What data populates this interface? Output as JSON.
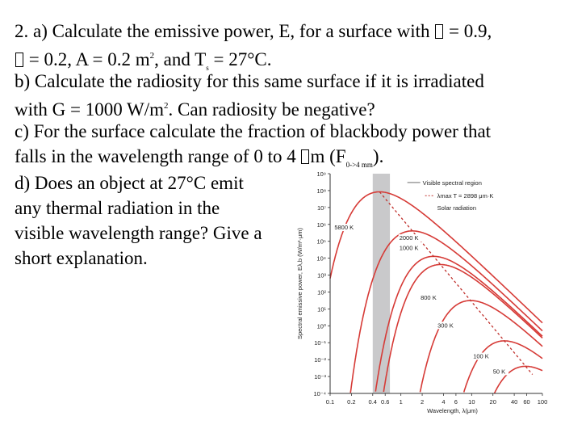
{
  "question": {
    "a": {
      "line1_pre": "2. a) Calculate the emissive power, E, for a surface with ",
      "line1_post": " = 0.9,",
      "line2_post": " = 0.2, A = 0.2 m",
      "area_exp": "2",
      "line2_mid": ", and T",
      "ts_sub": "s",
      "line2_end": " = 27°C."
    },
    "b": {
      "line1": "b) Calculate the radiosity for this same surface if it is irradiated",
      "line2_pre": "with G = 1000 W/m",
      "g_exp": "2",
      "line2_post": ".  Can radiosity be negative?"
    },
    "c": {
      "line1": "c) For the surface calculate the fraction of blackbody power that",
      "line2_pre": "falls in the wavelength range of 0 to 4 ",
      "line2_mid": "m (F",
      "f_sub": "0->4 mm",
      "line2_end": ")."
    },
    "d": {
      "line1": "d) Does an object at 27°C emit",
      "line2": "any thermal radiation in the",
      "line3": "visible wavelength range? Give a",
      "line4": "short explanation."
    }
  },
  "chart_data": {
    "type": "line",
    "xlabel": "Wavelength, λ(μm)",
    "ylabel": "Spectral emissive power, Eλ,b (W/m²·μm)",
    "x_scale": "log",
    "y_scale": "log",
    "xlim": [
      0.1,
      100
    ],
    "ylim": [
      0.0001,
      1000000000
    ],
    "x_ticks": [
      "0.1",
      "0.2",
      "0.4",
      "0.6",
      "1",
      "2",
      "4",
      "6",
      "10",
      "20",
      "40",
      "60",
      "100"
    ],
    "x_tick_values": [
      0.1,
      0.2,
      0.4,
      0.6,
      1,
      2,
      4,
      6,
      10,
      20,
      40,
      60,
      100
    ],
    "y_ticks": [
      "10⁹",
      "10⁸",
      "10⁷",
      "10⁶",
      "10⁵",
      "10⁴",
      "10³",
      "10²",
      "10¹",
      "10⁰",
      "10⁻¹",
      "10⁻²",
      "10⁻³",
      "10⁻⁴"
    ],
    "y_tick_values": [
      1000000000,
      100000000,
      10000000,
      1000000,
      100000,
      10000,
      1000,
      100,
      10,
      1,
      0.1,
      0.01,
      0.001,
      0.0001
    ],
    "visible_band": [
      0.4,
      0.7
    ],
    "series": [
      {
        "name": "5800 K",
        "T": 5800,
        "label_x": 0.115,
        "label_y": 500000
      },
      {
        "name": "2000 K",
        "T": 2000,
        "label_x": 0.95,
        "label_y": 120000
      },
      {
        "name": "1000 K",
        "T": 1000,
        "label_x": 0.95,
        "label_y": 30000
      },
      {
        "name": "800 K",
        "T": 800,
        "label_x": 1.9,
        "label_y": 35
      },
      {
        "name": "300 K",
        "T": 300,
        "label_x": 3.3,
        "label_y": 0.8
      },
      {
        "name": "100 K",
        "T": 100,
        "label_x": 10.5,
        "label_y": 0.012
      },
      {
        "name": "50 K",
        "T": 50,
        "label_x": 20,
        "label_y": 0.0015
      }
    ],
    "wien_line": {
      "label": "λmax T = 2898 μm·K"
    },
    "legend": {
      "entries": [
        "Visible spectral region",
        "λmax T = 2898 μm·K",
        "Solar radiation"
      ],
      "position": "top-right"
    },
    "colors": {
      "curves": "#d63a36",
      "wien": "#c0302c",
      "band": "#c9c9cb",
      "axis": "#333333"
    }
  }
}
